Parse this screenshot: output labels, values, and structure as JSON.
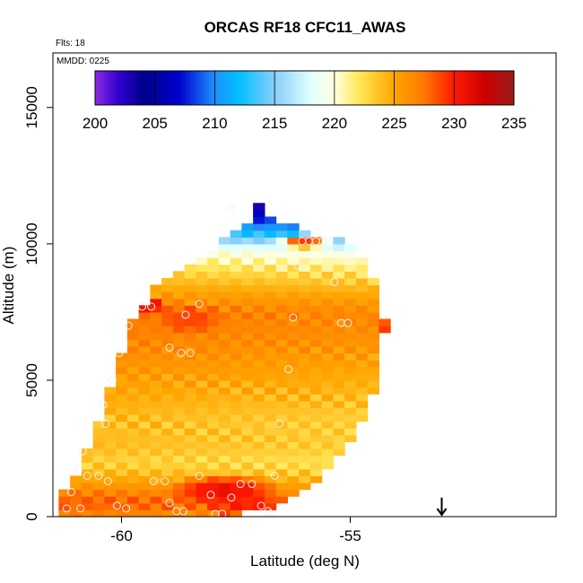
{
  "chart_data": {
    "type": "heatmap",
    "title": "ORCAS RF18 CFC11_AWAS",
    "flights_label": "Flts: 18",
    "date_label": "MMDD: 0225",
    "xlabel": "Latitude (deg N)",
    "ylabel": "Altitude (m)",
    "xlim": [
      -61.5,
      -50.5
    ],
    "ylim": [
      0,
      17000
    ],
    "x_ticks": [
      -60,
      -55
    ],
    "x_tick_labels": [
      "-60",
      "-55"
    ],
    "y_ticks": [
      0,
      5000,
      10000,
      15000
    ],
    "y_tick_labels": [
      "0",
      "5000",
      "10000",
      "15000"
    ],
    "colorbar": {
      "min": 200,
      "max": 235,
      "ticks": [
        200,
        205,
        210,
        215,
        220,
        225,
        230,
        235
      ],
      "tick_labels": [
        "200",
        "205",
        "210",
        "215",
        "220",
        "225",
        "230",
        "235"
      ],
      "color_stops": [
        {
          "value": 200,
          "color": "#8a2be2"
        },
        {
          "value": 202,
          "color": "#3000d0"
        },
        {
          "value": 204,
          "color": "#00008b"
        },
        {
          "value": 207,
          "color": "#0000cd"
        },
        {
          "value": 210,
          "color": "#1e90ff"
        },
        {
          "value": 212,
          "color": "#00bfff"
        },
        {
          "value": 215,
          "color": "#87cefa"
        },
        {
          "value": 218,
          "color": "#e0ffff"
        },
        {
          "value": 220,
          "color": "#ffffe0"
        },
        {
          "value": 222,
          "color": "#ffe95a"
        },
        {
          "value": 225,
          "color": "#ffa500"
        },
        {
          "value": 227.5,
          "color": "#ff7800"
        },
        {
          "value": 230,
          "color": "#ff1a00"
        },
        {
          "value": 232.5,
          "color": "#cc0000"
        },
        {
          "value": 235,
          "color": "#9b1b1b"
        }
      ]
    },
    "grid": {
      "cell_width_deg": 0.25,
      "cell_height_m": 250,
      "columns": [
        {
          "lat": -61.25,
          "alt_min": 0,
          "alt_max": 1000
        },
        {
          "lat": -61.0,
          "alt_min": 0,
          "alt_max": 1500
        },
        {
          "lat": -60.75,
          "alt_min": 0,
          "alt_max": 2500
        },
        {
          "lat": -60.5,
          "alt_min": 0,
          "alt_max": 3500
        },
        {
          "lat": -60.25,
          "alt_min": 0,
          "alt_max": 4750
        },
        {
          "lat": -60.0,
          "alt_min": 0,
          "alt_max": 6000
        },
        {
          "lat": -59.75,
          "alt_min": 0,
          "alt_max": 7250
        },
        {
          "lat": -59.5,
          "alt_min": 0,
          "alt_max": 7750
        },
        {
          "lat": -59.25,
          "alt_min": 0,
          "alt_max": 8500
        },
        {
          "lat": -59.0,
          "alt_min": 0,
          "alt_max": 8750
        },
        {
          "lat": -58.75,
          "alt_min": 0,
          "alt_max": 9000
        },
        {
          "lat": -58.5,
          "alt_min": 0,
          "alt_max": 9250
        },
        {
          "lat": -58.25,
          "alt_min": 0,
          "alt_max": 9500
        },
        {
          "lat": -58.0,
          "alt_min": 0,
          "alt_max": 9750
        },
        {
          "lat": -57.75,
          "alt_min": 0,
          "alt_max": 10250
        },
        {
          "lat": -57.5,
          "alt_min": 0,
          "alt_max": 10500
        },
        {
          "lat": -57.25,
          "alt_min": 250,
          "alt_max": 10750
        },
        {
          "lat": -57.0,
          "alt_min": 250,
          "alt_max": 11500
        },
        {
          "lat": -56.75,
          "alt_min": 250,
          "alt_max": 11000
        },
        {
          "lat": -56.5,
          "alt_min": 500,
          "alt_max": 10750
        },
        {
          "lat": -56.25,
          "alt_min": 750,
          "alt_max": 10750
        },
        {
          "lat": -56.0,
          "alt_min": 1000,
          "alt_max": 10500
        },
        {
          "lat": -55.75,
          "alt_min": 1250,
          "alt_max": 10250
        },
        {
          "lat": -55.5,
          "alt_min": 1750,
          "alt_max": 10250
        },
        {
          "lat": -55.25,
          "alt_min": 2250,
          "alt_max": 10250
        },
        {
          "lat": -55.0,
          "alt_min": 2750,
          "alt_max": 10000
        },
        {
          "lat": -54.75,
          "alt_min": 3500,
          "alt_max": 9500
        },
        {
          "lat": -54.5,
          "alt_min": 4500,
          "alt_max": 8750
        },
        {
          "lat": -54.25,
          "alt_min": 6750,
          "alt_max": 7250
        }
      ],
      "altitude_profile": [
        {
          "alt": 0,
          "value": 226
        },
        {
          "alt": 500,
          "value": 228
        },
        {
          "alt": 1000,
          "value": 226
        },
        {
          "alt": 1500,
          "value": 224
        },
        {
          "alt": 2000,
          "value": 222.5
        },
        {
          "alt": 2500,
          "value": 223.5
        },
        {
          "alt": 3500,
          "value": 223.5
        },
        {
          "alt": 4500,
          "value": 224.5
        },
        {
          "alt": 5500,
          "value": 225.5
        },
        {
          "alt": 6500,
          "value": 226.5
        },
        {
          "alt": 7500,
          "value": 227
        },
        {
          "alt": 8250,
          "value": 225
        },
        {
          "alt": 9000,
          "value": 222.5
        },
        {
          "alt": 9750,
          "value": 219.5
        },
        {
          "alt": 10250,
          "value": 214
        },
        {
          "alt": 10750,
          "value": 209
        },
        {
          "alt": 11250,
          "value": 205
        },
        {
          "alt": 11500,
          "value": 201
        }
      ],
      "hot_spots": [
        {
          "lat": -57.75,
          "alt": 1000,
          "lat_radius": 1.3,
          "alt_radius": 600,
          "value": 231
        },
        {
          "lat": -57.25,
          "alt": 400,
          "lat_radius": 1.0,
          "alt_radius": 500,
          "value": 230
        },
        {
          "lat": -59.5,
          "alt": 7750,
          "lat_radius": 0.6,
          "alt_radius": 400,
          "value": 231
        },
        {
          "lat": -56.0,
          "alt": 10100,
          "lat_radius": 0.6,
          "alt_radius": 300,
          "value": 230
        },
        {
          "lat": -58.5,
          "alt": 7250,
          "lat_radius": 0.8,
          "alt_radius": 600,
          "value": 229
        },
        {
          "lat": -54.25,
          "alt": 7000,
          "lat_radius": 0.3,
          "alt_radius": 300,
          "value": 229
        }
      ]
    },
    "samples": [
      {
        "lat": -61.2,
        "alt": 300
      },
      {
        "lat": -61.1,
        "alt": 900
      },
      {
        "lat": -60.9,
        "alt": 300
      },
      {
        "lat": -60.95,
        "alt": 1700
      },
      {
        "lat": -60.75,
        "alt": 1500
      },
      {
        "lat": -60.5,
        "alt": 1500
      },
      {
        "lat": -60.85,
        "alt": 2400
      },
      {
        "lat": -60.4,
        "alt": 4100
      },
      {
        "lat": -60.2,
        "alt": 5000
      },
      {
        "lat": -60.3,
        "alt": 1300
      },
      {
        "lat": -60.1,
        "alt": 400
      },
      {
        "lat": -59.9,
        "alt": 300
      },
      {
        "lat": -59.85,
        "alt": 7000
      },
      {
        "lat": -59.55,
        "alt": 7700
      },
      {
        "lat": -59.35,
        "alt": 7700
      },
      {
        "lat": -60.05,
        "alt": 6000
      },
      {
        "lat": -58.95,
        "alt": 6200
      },
      {
        "lat": -58.7,
        "alt": 6000
      },
      {
        "lat": -58.5,
        "alt": 6000
      },
      {
        "lat": -58.6,
        "alt": 7400
      },
      {
        "lat": -58.3,
        "alt": 7800
      },
      {
        "lat": -59.3,
        "alt": 1300
      },
      {
        "lat": -59.05,
        "alt": 1300
      },
      {
        "lat": -58.95,
        "alt": 500
      },
      {
        "lat": -58.3,
        "alt": 1500
      },
      {
        "lat": -58.05,
        "alt": 800
      },
      {
        "lat": -58.8,
        "alt": 200
      },
      {
        "lat": -58.65,
        "alt": 200
      },
      {
        "lat": -57.95,
        "alt": 100
      },
      {
        "lat": -57.8,
        "alt": 100
      },
      {
        "lat": -57.6,
        "alt": 700
      },
      {
        "lat": -57.4,
        "alt": 1200
      },
      {
        "lat": -57.15,
        "alt": 1200
      },
      {
        "lat": -56.95,
        "alt": 400
      },
      {
        "lat": -56.8,
        "alt": 200
      },
      {
        "lat": -56.75,
        "alt": 100
      },
      {
        "lat": -56.65,
        "alt": 1500
      },
      {
        "lat": -56.55,
        "alt": 3400
      },
      {
        "lat": -56.35,
        "alt": 5400
      },
      {
        "lat": -56.25,
        "alt": 7300
      },
      {
        "lat": -56.15,
        "alt": 9200
      },
      {
        "lat": -56.05,
        "alt": 10100
      },
      {
        "lat": -55.9,
        "alt": 10100
      },
      {
        "lat": -55.75,
        "alt": 10100
      },
      {
        "lat": -55.6,
        "alt": 10100
      },
      {
        "lat": -55.35,
        "alt": 8600
      },
      {
        "lat": -55.2,
        "alt": 7100
      },
      {
        "lat": -55.05,
        "alt": 7100
      },
      {
        "lat": -57.6,
        "alt": 11300
      },
      {
        "lat": -60.35,
        "alt": 3400
      }
    ],
    "arrow": {
      "lat": -53.0,
      "alt_top": 700,
      "alt_tip": 0
    }
  }
}
